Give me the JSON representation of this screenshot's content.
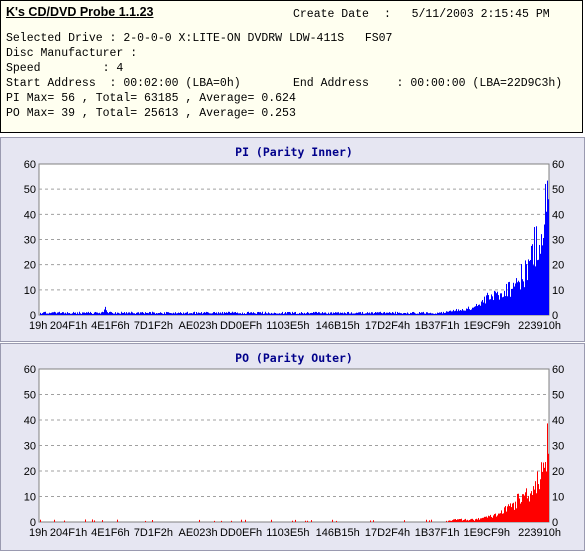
{
  "info": {
    "app_title": "K's CD/DVD Probe 1.1.23",
    "create_date_label": "Create Date",
    "create_date_value": ":   5/11/2003 2:15:45 PM",
    "selected_drive": "Selected Drive : 2-0-0-0 X:LITE-ON DVDRW LDW-411S   FS07",
    "disc_manufacturer": "Disc Manufacturer :",
    "speed": "Speed         : 4",
    "start_address": "Start Address  : 00:02:00 (LBA=0h)",
    "end_address": "End Address    : 00:00:00 (LBA=22D9C3h)",
    "pi_summary": "PI Max= 56 , Total= 63185 , Average= 0.624",
    "po_summary": "PO Max= 39 , Total= 25613 , Average= 0.253"
  },
  "colors": {
    "pi": "#0000ff",
    "po": "#ff0000",
    "panel_bg": "#e6e6f2",
    "plot_bg": "#ffffff",
    "title": "#00008b"
  },
  "chart_data": [
    {
      "type": "bar",
      "title": "PI (Parity Inner)",
      "x_tick_labels": [
        "19h",
        "204F1h",
        "4E1F6h",
        "7D1F2h",
        "AE023h",
        "DD0EFh",
        "1103E5h",
        "146B15h",
        "17D2F4h",
        "1B37F1h",
        "1E9CF9h",
        "223910h"
      ],
      "x_tick_lba": [
        25,
        132337,
        319990,
        512498,
        712739,
        905455,
        1115109,
        1338133,
        1561332,
        1783793,
        2006265,
        2242832
      ],
      "x_range_lba": [
        0,
        2284995
      ],
      "ylim": [
        0,
        60
      ],
      "y_ticks": [
        0,
        10,
        20,
        30,
        40,
        50,
        60
      ],
      "grid": "horizontal-dashed",
      "axis_labels_both_sides": true,
      "profile_lba": [
        0,
        143000,
        286000,
        290000,
        310000,
        330000,
        572000,
        858000,
        1144000,
        1430000,
        1700000,
        1773000,
        1860000,
        1925000,
        1975000,
        2010000,
        2045000,
        2075000,
        2110000,
        2145000,
        2170000,
        2195000,
        2215000,
        2235000,
        2250000,
        2262000,
        2275000,
        2284995
      ],
      "profile_value": [
        1,
        1,
        1,
        4,
        1,
        1,
        1,
        1,
        1,
        1,
        1,
        1,
        2,
        3,
        5,
        8,
        9,
        11,
        13,
        16,
        19,
        24,
        30,
        35,
        41,
        47,
        52,
        56
      ],
      "max": 56,
      "total": 63185,
      "average": 0.624
    },
    {
      "type": "bar",
      "title": "PO (Parity Outer)",
      "x_tick_labels": [
        "19h",
        "204F1h",
        "4E1F6h",
        "7D1F2h",
        "AE023h",
        "DD0EFh",
        "1103E5h",
        "146B15h",
        "17D2F4h",
        "1B37F1h",
        "1E9CF9h",
        "223910h"
      ],
      "x_tick_lba": [
        25,
        132337,
        319990,
        512498,
        712739,
        905455,
        1115109,
        1338133,
        1561332,
        1783793,
        2006265,
        2242832
      ],
      "x_range_lba": [
        0,
        2284995
      ],
      "ylim": [
        0,
        60
      ],
      "y_ticks": [
        0,
        10,
        20,
        30,
        40,
        50,
        60
      ],
      "grid": "horizontal-dashed",
      "axis_labels_both_sides": true,
      "profile_lba": [
        0,
        300000,
        600000,
        900000,
        1200000,
        1500000,
        1800000,
        1860000,
        1930000,
        2000000,
        2040000,
        2080000,
        2120000,
        2160000,
        2195000,
        2225000,
        2250000,
        2265000,
        2284995
      ],
      "profile_value": [
        0,
        0,
        0,
        0,
        0,
        0,
        0,
        1,
        1,
        2,
        3,
        5,
        8,
        11,
        14,
        18,
        23,
        30,
        39
      ],
      "max": 39,
      "total": 25613,
      "average": 0.253
    }
  ]
}
